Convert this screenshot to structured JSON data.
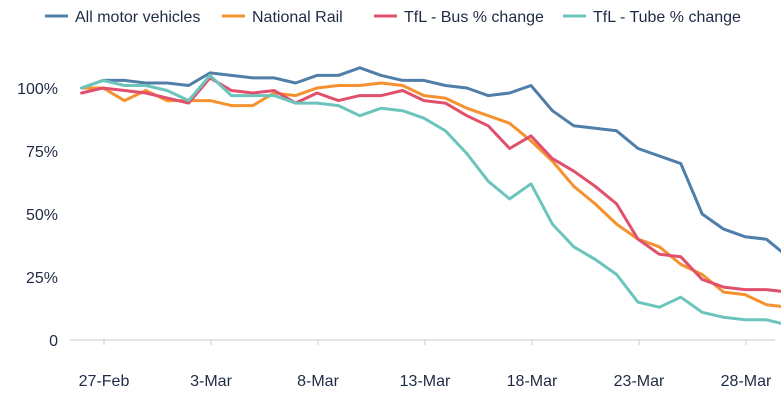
{
  "chart_data": {
    "type": "line",
    "title": "",
    "xlabel": "",
    "ylabel": "",
    "ylim": [
      0,
      110
    ],
    "yticks": [
      {
        "value": 0,
        "label": "0"
      },
      {
        "value": 25,
        "label": "25%"
      },
      {
        "value": 50,
        "label": "50%"
      },
      {
        "value": 75,
        "label": "75%"
      },
      {
        "value": 100,
        "label": "100%"
      }
    ],
    "x_dates": [
      "27-Feb",
      "28-Feb",
      "29-Feb",
      "1-Mar",
      "2-Mar",
      "3-Mar",
      "4-Mar",
      "5-Mar",
      "6-Mar",
      "7-Mar",
      "8-Mar",
      "9-Mar",
      "10-Mar",
      "11-Mar",
      "12-Mar",
      "13-Mar",
      "14-Mar",
      "15-Mar",
      "16-Mar",
      "17-Mar",
      "18-Mar",
      "19-Mar",
      "20-Mar",
      "21-Mar",
      "22-Mar",
      "23-Mar",
      "24-Mar",
      "25-Mar",
      "26-Mar",
      "27-Mar",
      "28-Mar",
      "29-Mar"
    ],
    "x_ticks": [
      "27-Feb",
      "3-Mar",
      "8-Mar",
      "13-Mar",
      "18-Mar",
      "23-Mar",
      "28-Mar"
    ],
    "legend_position": "top",
    "grid": false,
    "series": [
      {
        "name": "All motor vehicles",
        "color": "#4f7ea8",
        "x_start": "26-Feb",
        "values": [
          100,
          103,
          103,
          102,
          102,
          101,
          106,
          105,
          104,
          104,
          102,
          105,
          105,
          108,
          105,
          103,
          103,
          101,
          100,
          97,
          98,
          101,
          91,
          85,
          84,
          83,
          76,
          73,
          70,
          50,
          44,
          41,
          40,
          33
        ]
      },
      {
        "name": "National Rail",
        "color": "#f5922f",
        "x_start": "26-Feb",
        "values": [
          100,
          100,
          95,
          99,
          95,
          95,
          95,
          93,
          93,
          98,
          97,
          100,
          101,
          101,
          102,
          101,
          97,
          96,
          92,
          89,
          86,
          79,
          71,
          61,
          54,
          46,
          40,
          37,
          30,
          26,
          19,
          18,
          14,
          13,
          13
        ]
      },
      {
        "name": "TfL - Bus % change",
        "color": "#e0506c",
        "x_start": "26-Feb",
        "values": [
          98,
          100,
          99,
          98,
          96,
          94,
          104,
          99,
          98,
          99,
          94,
          98,
          95,
          97,
          97,
          99,
          95,
          94,
          89,
          85,
          76,
          81,
          72,
          67,
          61,
          54,
          40,
          34,
          33,
          24,
          21,
          20,
          20,
          19,
          18
        ]
      },
      {
        "name": "TfL - Tube % change",
        "color": "#6cc5bd",
        "x_start": "26-Feb",
        "values": [
          100,
          103,
          101,
          101,
          99,
          95,
          105,
          97,
          97,
          97,
          94,
          94,
          93,
          89,
          92,
          91,
          88,
          83,
          74,
          63,
          56,
          62,
          46,
          37,
          32,
          26,
          15,
          13,
          17,
          11,
          9,
          8,
          8,
          6,
          6
        ]
      }
    ]
  }
}
